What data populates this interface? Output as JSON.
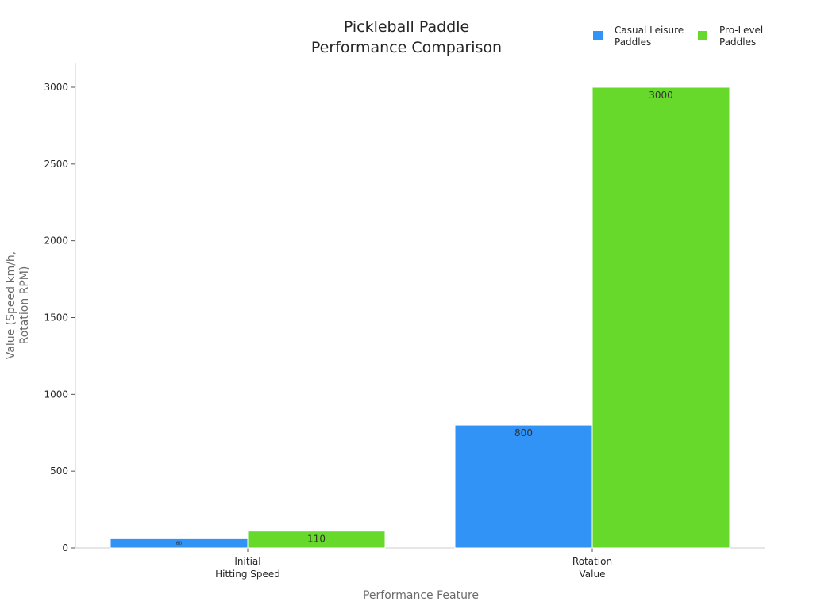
{
  "chart_data": {
    "type": "bar",
    "title": [
      "Pickleball Paddle",
      "Performance Comparison"
    ],
    "xlabel": "Performance Feature",
    "ylabel": [
      "Value (Speed km/h,",
      "Rotation RPM)"
    ],
    "categories": [
      [
        "Initial",
        "Hitting Speed"
      ],
      [
        "Rotation",
        "Value"
      ]
    ],
    "series": [
      {
        "name": [
          "Casual Leisure",
          "Paddles"
        ],
        "color": "#3193f5",
        "values": [
          60,
          800
        ],
        "labels": [
          "60",
          "800"
        ]
      },
      {
        "name": [
          "Pro-Level",
          "Paddles"
        ],
        "color": "#66d92a",
        "values": [
          110,
          3000
        ],
        "labels": [
          "110",
          "3000"
        ]
      }
    ],
    "ylim": [
      0,
      3150
    ],
    "yticks": [
      0,
      500,
      1000,
      1500,
      2000,
      2500,
      3000
    ],
    "grid": false,
    "legend": "top-right"
  }
}
